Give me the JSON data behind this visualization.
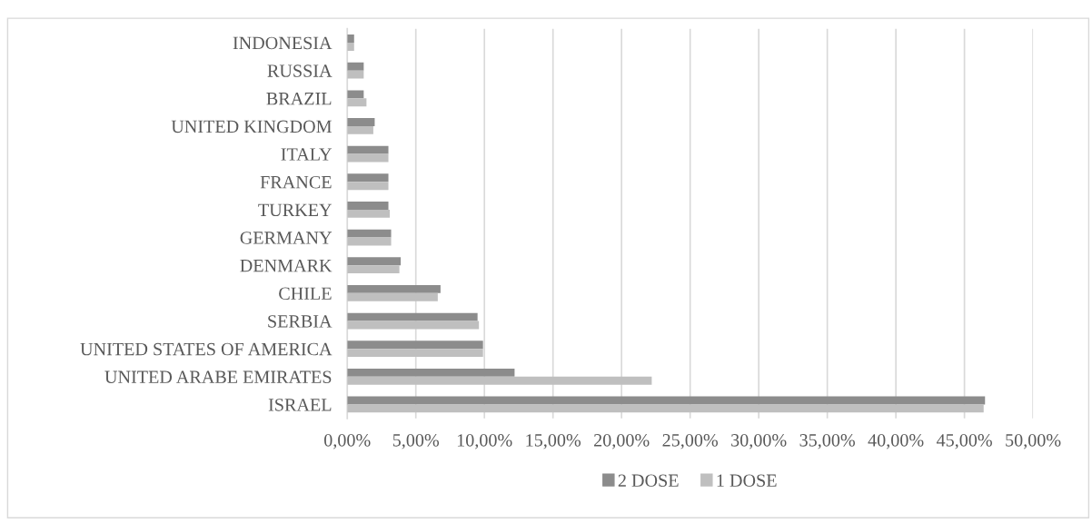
{
  "chart_data": {
    "type": "bar",
    "orientation": "horizontal",
    "categories": [
      "INDONESIA",
      "RUSSIA",
      "BRAZIL",
      "UNITED KINGDOM",
      "ITALY",
      "FRANCE",
      "TURKEY",
      "GERMANY",
      "DENMARK",
      "CHILE",
      "SERBIA",
      "UNITED STATES OF AMERICA",
      "UNITED ARABE EMIRATES",
      "ISRAEL"
    ],
    "series": [
      {
        "name": "2 DOSE",
        "color": "#8c8c8c",
        "values": [
          0.5,
          1.2,
          1.2,
          2.0,
          3.0,
          3.0,
          3.0,
          3.2,
          3.9,
          6.8,
          9.5,
          9.9,
          12.2,
          46.5
        ]
      },
      {
        "name": "1 DOSE",
        "color": "#bfbfbf",
        "values": [
          0.5,
          1.2,
          1.4,
          1.9,
          3.0,
          3.0,
          3.1,
          3.2,
          3.8,
          6.6,
          9.6,
          9.9,
          22.2,
          46.4
        ]
      }
    ],
    "xlim": [
      0,
      50
    ],
    "xticks": [
      {
        "value": 0,
        "label": "0,00%"
      },
      {
        "value": 5,
        "label": "5,00%"
      },
      {
        "value": 10,
        "label": "10,00%"
      },
      {
        "value": 15,
        "label": "15,00%"
      },
      {
        "value": 20,
        "label": "20,00%"
      },
      {
        "value": 25,
        "label": "25,00%"
      },
      {
        "value": 30,
        "label": "30,00%"
      },
      {
        "value": 35,
        "label": "35,00%"
      },
      {
        "value": 40,
        "label": "40,00%"
      },
      {
        "value": 45,
        "label": "45,00%"
      },
      {
        "value": 50,
        "label": "50,00%"
      }
    ],
    "grid": "x",
    "legend": "bottom"
  }
}
